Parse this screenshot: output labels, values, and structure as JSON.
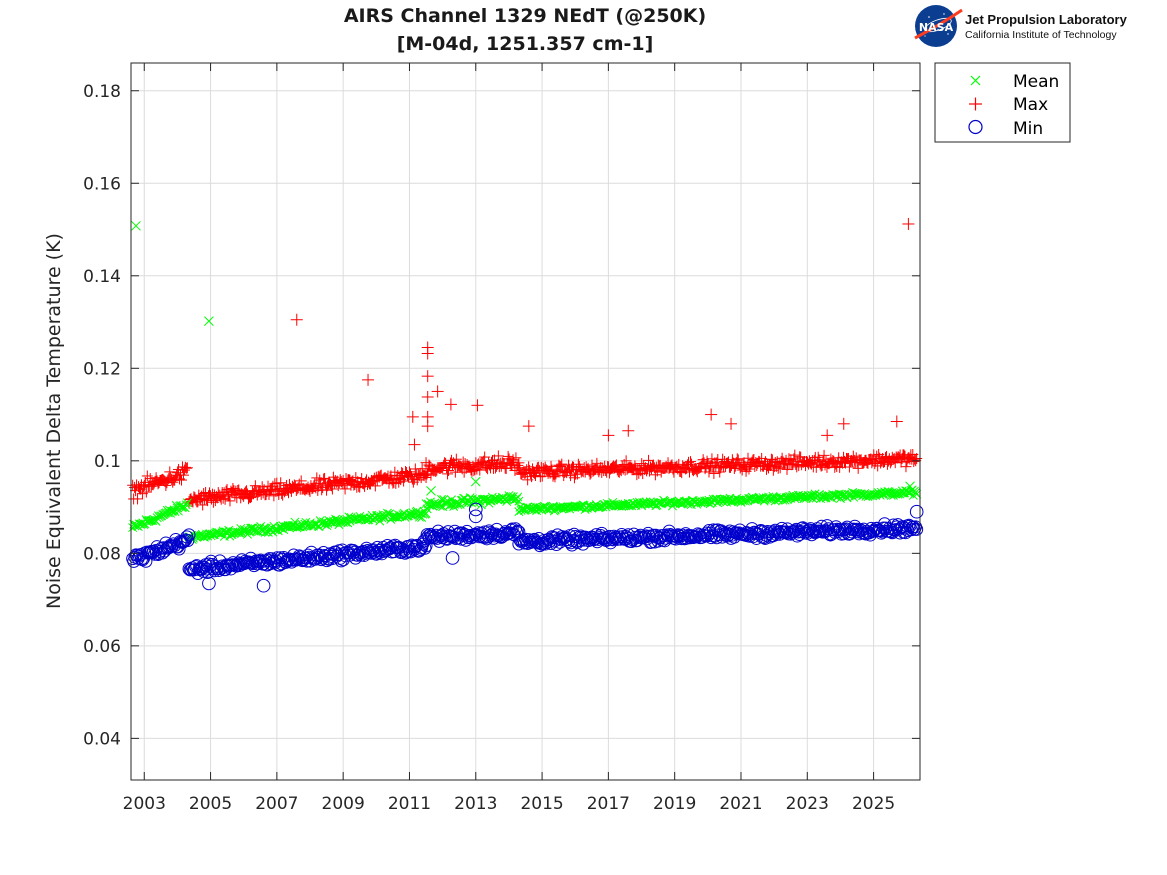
{
  "logo": {
    "agency": "NASA",
    "org_name": "Jet Propulsion Laboratory",
    "org_sub": "California Institute of Technology"
  },
  "colors": {
    "mean": "#00ff00",
    "max": "#ff0000",
    "min": "#0000cc",
    "grid": "#dcdcdc",
    "axis": "#262626"
  },
  "chart_data": {
    "type": "scatter",
    "title": "AIRS Channel 1329 NEdT (@250K)",
    "subtitle": "[M-04d, 1251.357 cm-1]",
    "xlabel": "",
    "ylabel": "Noise Equivalent Delta Temperature (K)",
    "xlim": [
      2002.6,
      2026.4
    ],
    "ylim": [
      0.031,
      0.186
    ],
    "xticks": [
      2003,
      2005,
      2007,
      2009,
      2011,
      2013,
      2015,
      2017,
      2019,
      2021,
      2023,
      2025
    ],
    "xtick_labels": [
      "2003",
      "2005",
      "2007",
      "2009",
      "2011",
      "2013",
      "2015",
      "2017",
      "2019",
      "2021",
      "2023",
      "2025"
    ],
    "yticks": [
      0.04,
      0.06,
      0.08,
      0.1,
      0.12,
      0.14,
      0.16,
      0.18
    ],
    "ytick_labels": [
      "0.04",
      "0.06",
      "0.08",
      "0.1",
      "0.12",
      "0.14",
      "0.16",
      "0.18"
    ],
    "grid": true,
    "legend": {
      "placement": "outside-top-right",
      "entries": [
        {
          "name": "Mean",
          "marker": "x"
        },
        {
          "name": "Max",
          "marker": "+"
        },
        {
          "name": "Min",
          "marker": "o"
        }
      ]
    },
    "series": [
      {
        "name": "Mean",
        "marker": "x",
        "trend_segments": [
          {
            "x": [
              2002.65,
              2004.3
            ],
            "y": [
              0.0855,
              0.0905
            ],
            "spread": 0.0012
          },
          {
            "x": [
              2004.35,
              2011.5
            ],
            "y": [
              0.0835,
              0.0888
            ],
            "spread": 0.001
          },
          {
            "x": [
              2011.5,
              2014.3
            ],
            "y": [
              0.0905,
              0.092
            ],
            "spread": 0.0012
          },
          {
            "x": [
              2014.3,
              2026.3
            ],
            "y": [
              0.0895,
              0.0932
            ],
            "spread": 0.0008
          }
        ],
        "outliers": [
          {
            "x": 2002.75,
            "y": 0.1508
          },
          {
            "x": 2004.95,
            "y": 0.1302
          },
          {
            "x": 2011.65,
            "y": 0.0935
          },
          {
            "x": 2013.0,
            "y": 0.0955
          },
          {
            "x": 2026.1,
            "y": 0.0945
          }
        ]
      },
      {
        "name": "Max",
        "marker": "+",
        "trend_segments": [
          {
            "x": [
              2002.65,
              2004.3
            ],
            "y": [
              0.0935,
              0.0975
            ],
            "spread": 0.0025
          },
          {
            "x": [
              2004.35,
              2011.5
            ],
            "y": [
              0.0915,
              0.097
            ],
            "spread": 0.0022
          },
          {
            "x": [
              2011.5,
              2014.3
            ],
            "y": [
              0.0985,
              0.0995
            ],
            "spread": 0.0025
          },
          {
            "x": [
              2014.3,
              2026.3
            ],
            "y": [
              0.0975,
              0.1005
            ],
            "spread": 0.002
          }
        ],
        "outliers": [
          {
            "x": 2007.6,
            "y": 0.1305
          },
          {
            "x": 2009.75,
            "y": 0.1175
          },
          {
            "x": 2011.1,
            "y": 0.1095
          },
          {
            "x": 2011.15,
            "y": 0.1035
          },
          {
            "x": 2011.55,
            "y": 0.1245
          },
          {
            "x": 2011.55,
            "y": 0.1232
          },
          {
            "x": 2011.55,
            "y": 0.1183
          },
          {
            "x": 2011.55,
            "y": 0.1138
          },
          {
            "x": 2011.55,
            "y": 0.1095
          },
          {
            "x": 2011.55,
            "y": 0.1075
          },
          {
            "x": 2011.85,
            "y": 0.115
          },
          {
            "x": 2012.25,
            "y": 0.1122
          },
          {
            "x": 2013.05,
            "y": 0.112
          },
          {
            "x": 2014.6,
            "y": 0.1075
          },
          {
            "x": 2017.0,
            "y": 0.1055
          },
          {
            "x": 2017.6,
            "y": 0.1065
          },
          {
            "x": 2020.1,
            "y": 0.11
          },
          {
            "x": 2020.7,
            "y": 0.108
          },
          {
            "x": 2023.6,
            "y": 0.1055
          },
          {
            "x": 2024.1,
            "y": 0.108
          },
          {
            "x": 2025.7,
            "y": 0.1085
          },
          {
            "x": 2026.05,
            "y": 0.1512
          }
        ]
      },
      {
        "name": "Min",
        "marker": "o",
        "trend_segments": [
          {
            "x": [
              2002.65,
              2004.35
            ],
            "y": [
              0.0785,
              0.083
            ],
            "spread": 0.0018
          },
          {
            "x": [
              2004.35,
              2011.5
            ],
            "y": [
              0.0765,
              0.0815
            ],
            "spread": 0.0016
          },
          {
            "x": [
              2011.5,
              2014.3
            ],
            "y": [
              0.0835,
              0.0845
            ],
            "spread": 0.0016
          },
          {
            "x": [
              2014.3,
              2026.3
            ],
            "y": [
              0.0825,
              0.0855
            ],
            "spread": 0.0015
          }
        ],
        "outliers": [
          {
            "x": 2004.95,
            "y": 0.0735
          },
          {
            "x": 2006.6,
            "y": 0.073
          },
          {
            "x": 2012.3,
            "y": 0.079
          },
          {
            "x": 2013.0,
            "y": 0.0895
          },
          {
            "x": 2013.0,
            "y": 0.088
          },
          {
            "x": 2026.3,
            "y": 0.089
          }
        ]
      }
    ]
  }
}
